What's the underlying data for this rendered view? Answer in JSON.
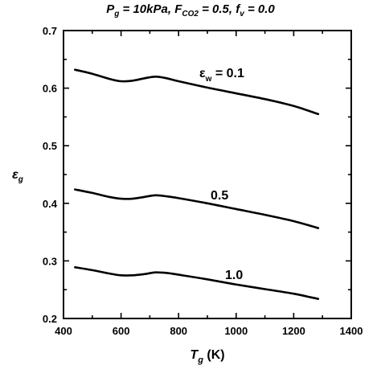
{
  "title": {
    "p_symbol": "P",
    "p_sub": "g",
    "p_value": " = 10kPa, ",
    "f_symbol": "F",
    "f_sub": "CO2",
    "f_value": " = 0.5, ",
    "fv_symbol": "f",
    "fv_sub": "v",
    "fv_value": " = 0.0"
  },
  "xlabel": {
    "symbol": "T",
    "sub": "g",
    "unit": " (K)"
  },
  "ylabel": {
    "symbol": "ε",
    "sub": "g"
  },
  "chart_data": {
    "type": "line",
    "xlim": [
      400,
      1400
    ],
    "ylim": [
      0.2,
      0.7
    ],
    "xticks": [
      "400",
      "600",
      "800",
      "1000",
      "1200",
      "1400"
    ],
    "yticks": [
      "0.2",
      "0.3",
      "0.4",
      "0.5",
      "0.6",
      "0.7"
    ],
    "grid": false,
    "series": [
      {
        "label_prefix": "ε",
        "label_sub": "w",
        "label_value": " = 0.1",
        "x": [
          440,
          500,
          560,
          600,
          640,
          680,
          720,
          760,
          800,
          900,
          1000,
          1100,
          1200,
          1285
        ],
        "y": [
          0.632,
          0.625,
          0.616,
          0.612,
          0.613,
          0.617,
          0.62,
          0.617,
          0.612,
          0.601,
          0.591,
          0.581,
          0.569,
          0.555
        ]
      },
      {
        "label_value": "0.5",
        "x": [
          440,
          500,
          560,
          600,
          640,
          680,
          720,
          760,
          800,
          900,
          1000,
          1100,
          1200,
          1285
        ],
        "y": [
          0.424,
          0.418,
          0.411,
          0.408,
          0.408,
          0.411,
          0.414,
          0.412,
          0.409,
          0.4,
          0.39,
          0.38,
          0.369,
          0.357
        ]
      },
      {
        "label_value": "1.0",
        "x": [
          440,
          500,
          560,
          600,
          640,
          680,
          720,
          760,
          800,
          900,
          1000,
          1100,
          1200,
          1285
        ],
        "y": [
          0.289,
          0.284,
          0.278,
          0.275,
          0.275,
          0.277,
          0.28,
          0.279,
          0.276,
          0.268,
          0.259,
          0.251,
          0.243,
          0.234
        ]
      }
    ]
  }
}
